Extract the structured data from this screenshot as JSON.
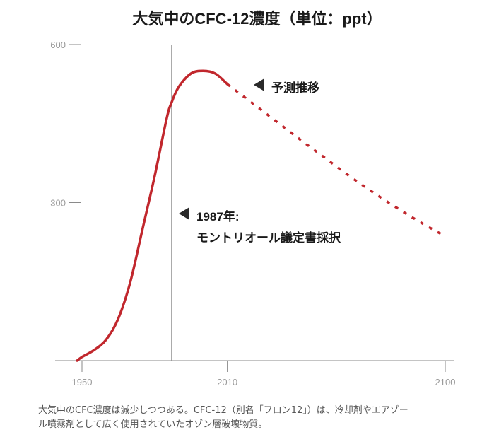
{
  "chart_data": {
    "type": "line",
    "title": "大気中のCFC-12濃度（単位：ppt）",
    "xlabel": "",
    "ylabel": "",
    "xlim": [
      1948,
      2103
    ],
    "ylim": [
      0,
      600
    ],
    "x_ticks": [
      1950,
      2010,
      2100
    ],
    "x_tick_labels": [
      "1950",
      "2010",
      "2100"
    ],
    "y_ticks": [
      0,
      300,
      600
    ],
    "y_tick_labels": [
      "",
      "300",
      "600"
    ],
    "grid": false,
    "series": [
      {
        "name": "",
        "style": "solid",
        "color": "#c1272d",
        "x": [
          1948,
          1950,
          1955,
          1960,
          1965,
          1970,
          1975,
          1980,
          1985,
          1987,
          1990,
          1995,
          2000,
          2005,
          2010
        ],
        "y": [
          0,
          7,
          20,
          40,
          80,
          150,
          250,
          350,
          460,
          490,
          520,
          545,
          550,
          545,
          525
        ]
      },
      {
        "name": "",
        "style": "dashed",
        "color": "#c1272d",
        "x": [
          2010,
          2020,
          2030,
          2040,
          2050,
          2060,
          2070,
          2080,
          2090,
          2100
        ],
        "y": [
          525,
          490,
          455,
          420,
          386,
          352,
          320,
          290,
          262,
          236
        ]
      }
    ],
    "reference_line": {
      "x": 1987
    },
    "annotations": [
      {
        "id": "projection",
        "lines": [
          "予測推移"
        ]
      },
      {
        "id": "montreal",
        "lines": [
          "1987年:",
          "モントリオール議定書採択"
        ]
      }
    ]
  },
  "caption": {
    "lines": [
      "大気中のCFC濃度は減少しつつある。CFC-12（別名「フロン12」）は、冷却剤やエアゾー",
      "ル噴霧剤として広く使用されていたオゾン層破壊物質。"
    ]
  },
  "colors": {
    "curve": "#c1272d",
    "axis": "#8a8a8a",
    "tick_label": "#9a9a9a",
    "text": "#1a1a1a",
    "caption": "#555555"
  }
}
